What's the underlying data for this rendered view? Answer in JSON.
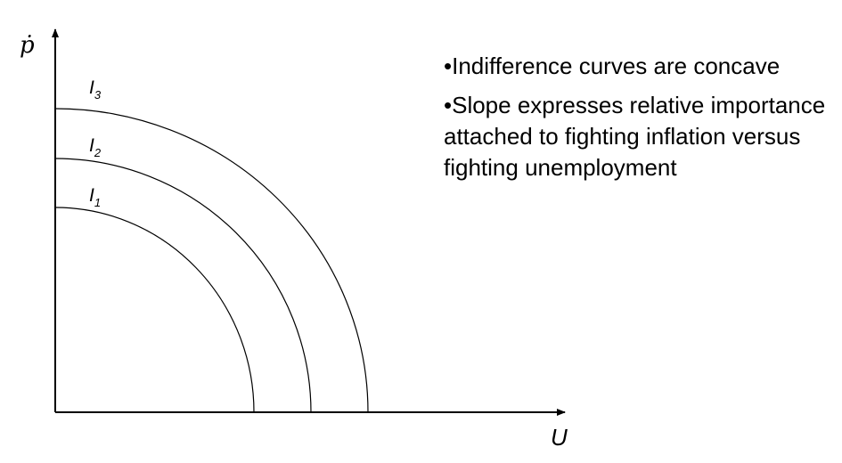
{
  "diagram": {
    "y_axis_label": "ṗ",
    "x_axis_label": "U",
    "curves": [
      {
        "label": "I",
        "subscript": "1"
      },
      {
        "label": "I",
        "subscript": "2"
      },
      {
        "label": "I",
        "subscript": "3"
      }
    ]
  },
  "bullets": [
    "•Indifference curves are concave",
    "•Slope expresses relative importance attached to fighting inflation versus fighting unemployment"
  ]
}
